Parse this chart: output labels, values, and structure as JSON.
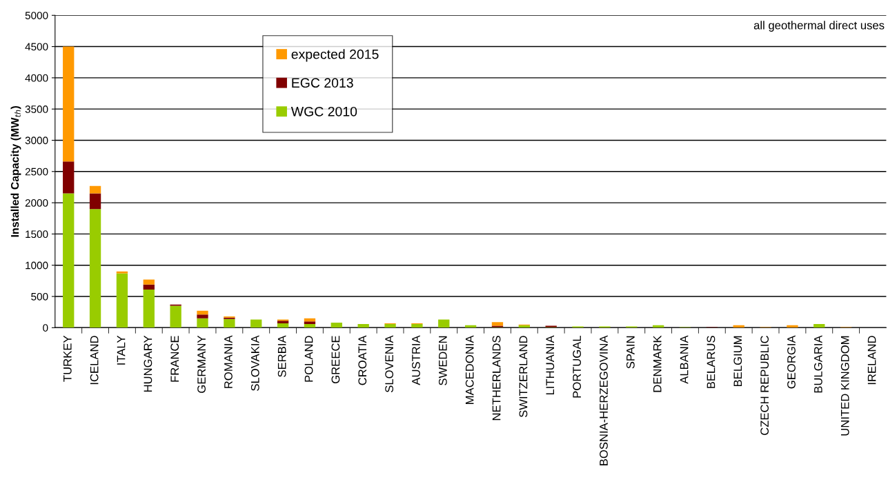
{
  "chart_data": {
    "type": "bar",
    "stacked": true,
    "ylabel": "Installed Capacity (MW$_{th}$)",
    "categories": [
      "TURKEY",
      "ICELAND",
      "ITALY",
      "HUNGARY",
      "FRANCE",
      "GERMANY",
      "ROMANIA",
      "SLOVAKIA",
      "SERBIA",
      "POLAND",
      "GREECE",
      "CROATIA",
      "SLOVENIA",
      "AUSTRIA",
      "SWEDEN",
      "MACEDONIA",
      "NETHERLANDS",
      "SWITZERLAND",
      "LITHUANIA",
      "PORTUGAL",
      "BOSNIA-HERZEGOVINA",
      "SPAIN",
      "DENMARK",
      "ALBANIA",
      "BELARUS",
      "BELGIUM",
      "CZECH REPUBLIC",
      "GEORGIA",
      "BULGARIA",
      "UNITED KINGDOM",
      "IRELAND"
    ],
    "series": [
      {
        "name": "WGC 2010",
        "color": "#99cc00",
        "values": [
          2150,
          1900,
          870,
          610,
          350,
          150,
          140,
          130,
          70,
          60,
          80,
          60,
          60,
          60,
          130,
          40,
          10,
          40,
          10,
          20,
          20,
          20,
          40,
          10,
          0,
          0,
          0,
          0,
          60,
          0,
          0
        ]
      },
      {
        "name": "EGC 2013",
        "color": "#800000",
        "values": [
          510,
          250,
          0,
          80,
          20,
          60,
          20,
          0,
          40,
          40,
          0,
          0,
          0,
          0,
          0,
          0,
          20,
          0,
          20,
          0,
          0,
          0,
          0,
          0,
          10,
          0,
          0,
          0,
          0,
          0,
          0
        ]
      },
      {
        "name": "expected 2015",
        "color": "#ff9900",
        "values": [
          1840,
          120,
          30,
          80,
          0,
          60,
          20,
          0,
          20,
          50,
          0,
          0,
          10,
          10,
          0,
          0,
          60,
          10,
          0,
          0,
          0,
          0,
          0,
          0,
          0,
          40,
          10,
          40,
          0,
          10,
          0
        ]
      }
    ],
    "ylim": [
      0,
      5000
    ],
    "yticks": [
      0,
      500,
      1000,
      1500,
      2000,
      2500,
      3000,
      3500,
      4000,
      4500,
      5000
    ],
    "grid": "y",
    "legend": "top left",
    "annotations": [
      "all geothermal direct uses"
    ]
  }
}
